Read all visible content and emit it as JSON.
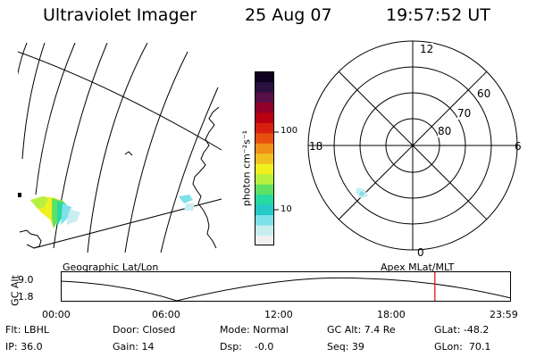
{
  "header": {
    "title": "Ultraviolet Imager",
    "date": "25 Aug 07",
    "time": "19:57:52 UT"
  },
  "colorbar": {
    "units_label": "photon cm⁻²s⁻¹",
    "ticks": [
      "100",
      "10"
    ],
    "colors": [
      "#f0f0f0",
      "#c8eef0",
      "#7ee0e8",
      "#27c8c8",
      "#27d8a0",
      "#60e060",
      "#b8f040",
      "#f0f020",
      "#f0c020",
      "#f09018",
      "#e85010",
      "#d82010",
      "#b80010",
      "#900028",
      "#581048",
      "#281040",
      "#100020"
    ]
  },
  "geo_map": {
    "name": "Geographic Lat/Lon"
  },
  "polar_plot": {
    "name": "Apex MLat/MLT",
    "mlt_labels": [
      "12",
      "18",
      "6",
      "0"
    ],
    "lat_labels": [
      "60",
      "70",
      "80"
    ]
  },
  "timeline": {
    "y_axis_label": "GC Alt",
    "y_ticks": [
      "9.0",
      "1.8"
    ],
    "x_ticks": [
      "00:00",
      "06:00",
      "12:00",
      "18:00",
      "23:59"
    ],
    "current_time_fraction": 0.831,
    "marker_color": "#e00000"
  },
  "info": {
    "flt": "Flt: LBHL",
    "ip": "IP: 36.0",
    "door": "Door: Closed",
    "gain": "Gain: 14",
    "mode": "Mode: Normal",
    "dsp": "Dsp:    -0.0",
    "gc_alt": "GC Alt: 7.4 Re",
    "seq": "Seq: 39",
    "glat": "GLat: -48.2",
    "glon": "GLon:  70.1"
  }
}
